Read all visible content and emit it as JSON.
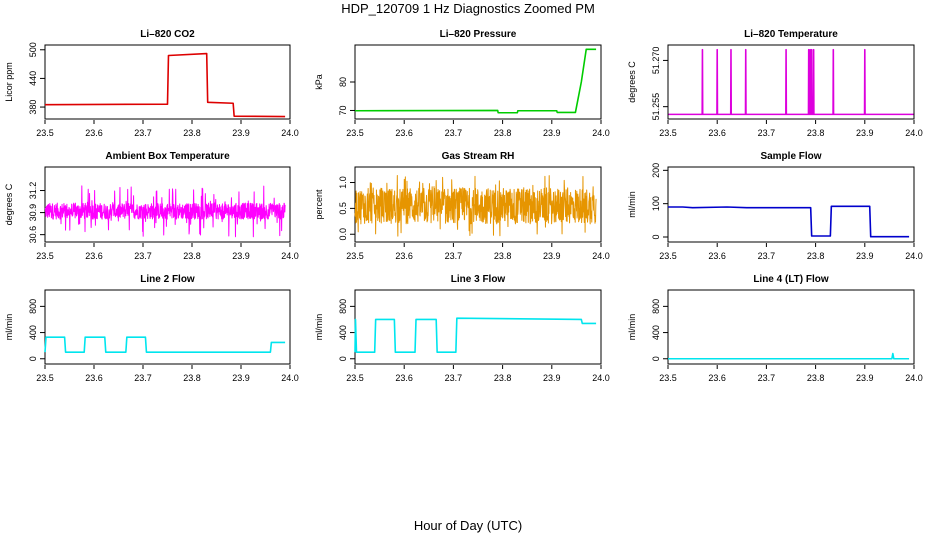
{
  "figure": {
    "title": "HDP_120709  1 Hz Diagnostics Zoomed PM",
    "xlabel": "Hour of Day (UTC)"
  },
  "chart_data": [
    {
      "type": "line",
      "title": "Li–820 CO2",
      "ylabel": "Licor ppm",
      "color": "#dd0000",
      "xlim": [
        23.5,
        24.0
      ],
      "ylim": [
        355,
        510
      ],
      "xticks": [
        "23.5",
        "23.6",
        "23.7",
        "23.8",
        "23.9",
        "24.0"
      ],
      "yticks": [
        {
          "v": 380,
          "label": "380"
        },
        {
          "v": 440,
          "label": "440"
        },
        {
          "v": 500,
          "label": "500"
        }
      ],
      "x": [
        23.5,
        23.75,
        23.752,
        23.83,
        23.832,
        23.884,
        23.886,
        23.99
      ],
      "y": [
        385,
        386,
        488,
        492,
        390,
        388,
        361,
        360
      ]
    },
    {
      "type": "line",
      "title": "Li–820 Pressure",
      "ylabel": "kPa",
      "color": "#00cc00",
      "xlim": [
        23.5,
        24.0
      ],
      "ylim": [
        67,
        93
      ],
      "xticks": [
        "23.5",
        "23.6",
        "23.7",
        "23.8",
        "23.9",
        "24.0"
      ],
      "yticks": [
        {
          "v": 70,
          "label": "70"
        },
        {
          "v": 80,
          "label": "80"
        }
      ],
      "x": [
        23.5,
        23.79,
        23.791,
        23.83,
        23.831,
        23.91,
        23.911,
        23.948,
        23.96,
        23.97,
        23.99
      ],
      "y": [
        69.9,
        70.0,
        69.2,
        69.2,
        69.9,
        69.9,
        69.3,
        69.3,
        80,
        91.5,
        91.5
      ]
    },
    {
      "type": "line",
      "title": "Li–820 Temperature",
      "ylabel": "degrees C",
      "color": "#dd00dd",
      "xlim": [
        23.5,
        24.0
      ],
      "ylim": [
        51.251,
        51.275
      ],
      "xticks": [
        "23.5",
        "23.6",
        "23.7",
        "23.8",
        "23.9",
        "24.0"
      ],
      "yticks": [
        {
          "v": 51.255,
          "label": "51.255"
        },
        {
          "v": 51.27,
          "label": "51.270"
        }
      ],
      "baseline": 51.2525,
      "spike_top": 51.2735,
      "spikes": [
        23.57,
        23.6,
        23.628,
        23.658,
        23.74,
        23.786,
        23.789,
        23.792,
        23.796,
        23.836,
        23.9
      ]
    },
    {
      "type": "line",
      "title": "Ambient Box Temperature",
      "ylabel": "degrees C",
      "color": "#ff00ff",
      "xlim": [
        23.5,
        24.0
      ],
      "ylim": [
        30.5,
        31.52
      ],
      "xticks": [
        "23.5",
        "23.6",
        "23.7",
        "23.8",
        "23.9",
        "24.0"
      ],
      "yticks": [
        {
          "v": 30.6,
          "label": "30.6"
        },
        {
          "v": 30.9,
          "label": "30.9"
        },
        {
          "v": 31.2,
          "label": "31.2"
        }
      ],
      "noise": {
        "x0": 23.5,
        "x1": 23.99,
        "center": 30.92,
        "band": 0.11,
        "spike": 0.35,
        "n": 900
      }
    },
    {
      "type": "line",
      "title": "Gas Stream RH",
      "ylabel": "percent",
      "color": "#e69500",
      "xlim": [
        23.5,
        24.0
      ],
      "ylim": [
        -0.15,
        1.3
      ],
      "xticks": [
        "23.5",
        "23.6",
        "23.7",
        "23.8",
        "23.9",
        "24.0"
      ],
      "yticks": [
        {
          "v": 0,
          "label": "0.0"
        },
        {
          "v": 0.5,
          "label": "0.5"
        },
        {
          "v": 1,
          "label": "1.0"
        }
      ],
      "noise": {
        "x0": 23.5,
        "x1": 23.99,
        "center": 0.55,
        "band": 0.35,
        "spike": 0.6,
        "n": 900
      }
    },
    {
      "type": "line",
      "title": "Sample Flow",
      "ylabel": "ml/min",
      "color": "#0000cc",
      "xlim": [
        23.5,
        24.0
      ],
      "ylim": [
        -15,
        210
      ],
      "xticks": [
        "23.5",
        "23.6",
        "23.7",
        "23.8",
        "23.9",
        "24.0"
      ],
      "yticks": [
        {
          "v": 0,
          "label": "0"
        },
        {
          "v": 100,
          "label": "100"
        },
        {
          "v": 200,
          "label": "200"
        }
      ],
      "x": [
        23.5,
        23.53,
        23.55,
        23.62,
        23.66,
        23.79,
        23.792,
        23.83,
        23.832,
        23.91,
        23.912,
        23.99
      ],
      "y": [
        90,
        90,
        88,
        90,
        88,
        88,
        3,
        3,
        92,
        92,
        1,
        1
      ]
    },
    {
      "type": "line",
      "title": "Line 2 Flow",
      "ylabel": "ml/min",
      "color": "#00e5ee",
      "xlim": [
        23.5,
        24.0
      ],
      "ylim": [
        -80,
        1050
      ],
      "xticks": [
        "23.5",
        "23.6",
        "23.7",
        "23.8",
        "23.9",
        "24.0"
      ],
      "yticks": [
        {
          "v": 0,
          "label": "0"
        },
        {
          "v": 400,
          "label": "400"
        },
        {
          "v": 800,
          "label": "800"
        }
      ],
      "x": [
        23.5,
        23.502,
        23.54,
        23.542,
        23.58,
        23.582,
        23.622,
        23.624,
        23.665,
        23.667,
        23.705,
        23.707,
        23.96,
        23.962,
        23.99
      ],
      "y": [
        100,
        330,
        330,
        100,
        100,
        330,
        330,
        100,
        100,
        330,
        330,
        100,
        100,
        250,
        250
      ]
    },
    {
      "type": "line",
      "title": "Line 3 Flow",
      "ylabel": "ml/min",
      "color": "#00e5ee",
      "xlim": [
        23.5,
        24.0
      ],
      "ylim": [
        -80,
        1050
      ],
      "xticks": [
        "23.5",
        "23.6",
        "23.7",
        "23.8",
        "23.9",
        "24.0"
      ],
      "yticks": [
        {
          "v": 0,
          "label": "0"
        },
        {
          "v": 400,
          "label": "400"
        },
        {
          "v": 800,
          "label": "800"
        }
      ],
      "x": [
        23.5,
        23.501,
        23.503,
        23.54,
        23.542,
        23.58,
        23.582,
        23.622,
        23.624,
        23.665,
        23.667,
        23.705,
        23.707,
        23.96,
        23.962,
        23.99
      ],
      "y": [
        100,
        600,
        100,
        100,
        600,
        600,
        100,
        100,
        600,
        600,
        100,
        100,
        620,
        600,
        540,
        540
      ]
    },
    {
      "type": "line",
      "title": "Line 4 (LT) Flow",
      "ylabel": "ml/min",
      "color": "#00e5ee",
      "xlim": [
        23.5,
        24.0
      ],
      "ylim": [
        -80,
        1050
      ],
      "xticks": [
        "23.5",
        "23.6",
        "23.7",
        "23.8",
        "23.9",
        "24.0"
      ],
      "yticks": [
        {
          "v": 0,
          "label": "0"
        },
        {
          "v": 400,
          "label": "400"
        },
        {
          "v": 800,
          "label": "800"
        }
      ],
      "x": [
        23.5,
        23.955,
        23.957,
        23.959,
        23.99
      ],
      "y": [
        0,
        0,
        80,
        0,
        0
      ]
    }
  ]
}
